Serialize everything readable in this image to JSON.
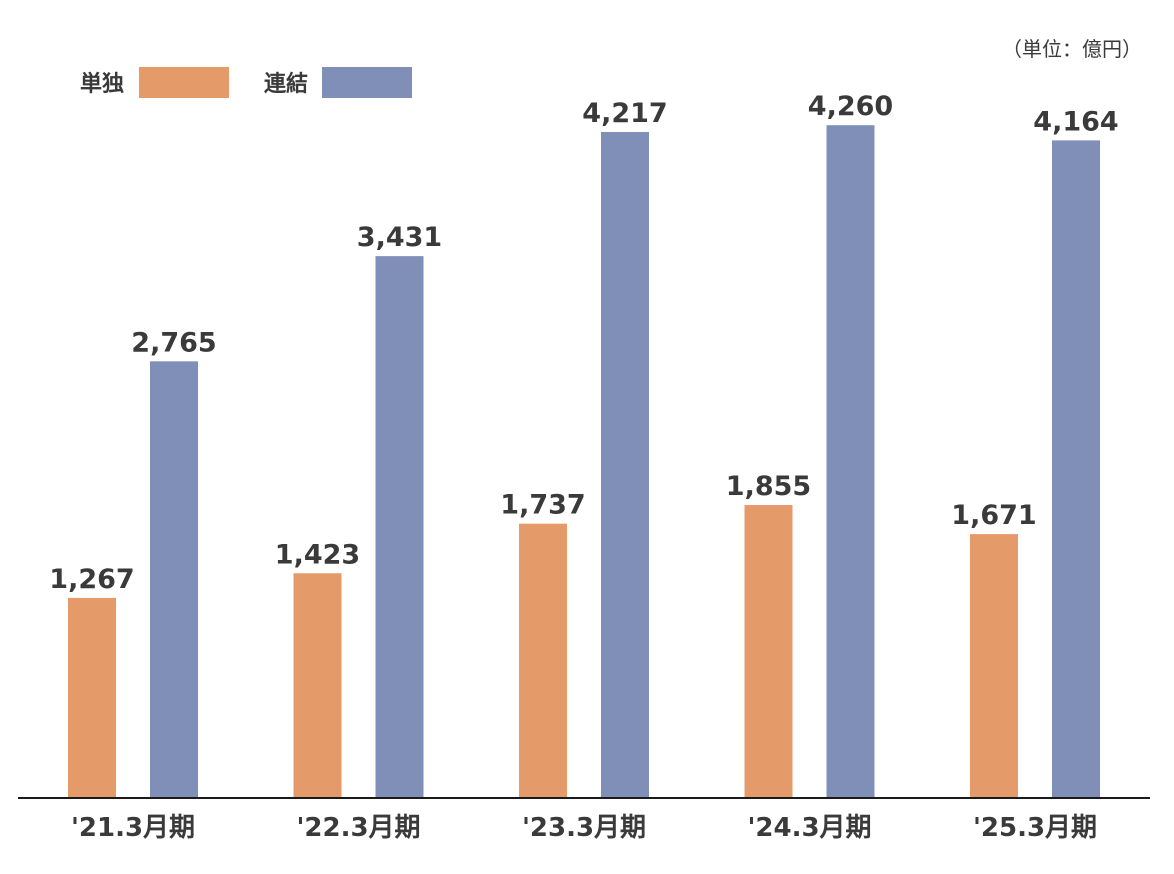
{
  "chart_data": {
    "type": "bar",
    "unit": "（単位：億円）",
    "categories": [
      "'21.3月期",
      "'22.3月期",
      "'23.3月期",
      "'24.3月期",
      "'25.3月期"
    ],
    "series": [
      {
        "name": "単独",
        "color": "#e49a69",
        "values": [
          1267,
          1423,
          1737,
          1855,
          1671
        ],
        "labels": [
          "1,267",
          "1,423",
          "1,737",
          "1,855",
          "1,671"
        ]
      },
      {
        "name": "連結",
        "color": "#7f8fb8",
        "values": [
          2765,
          3431,
          4217,
          4260,
          4164
        ],
        "labels": [
          "2,765",
          "3,431",
          "4,217",
          "4,260",
          "4,164"
        ]
      }
    ],
    "ylim": [
      0,
      4300
    ],
    "grid": false,
    "legend_position": "top-left"
  }
}
